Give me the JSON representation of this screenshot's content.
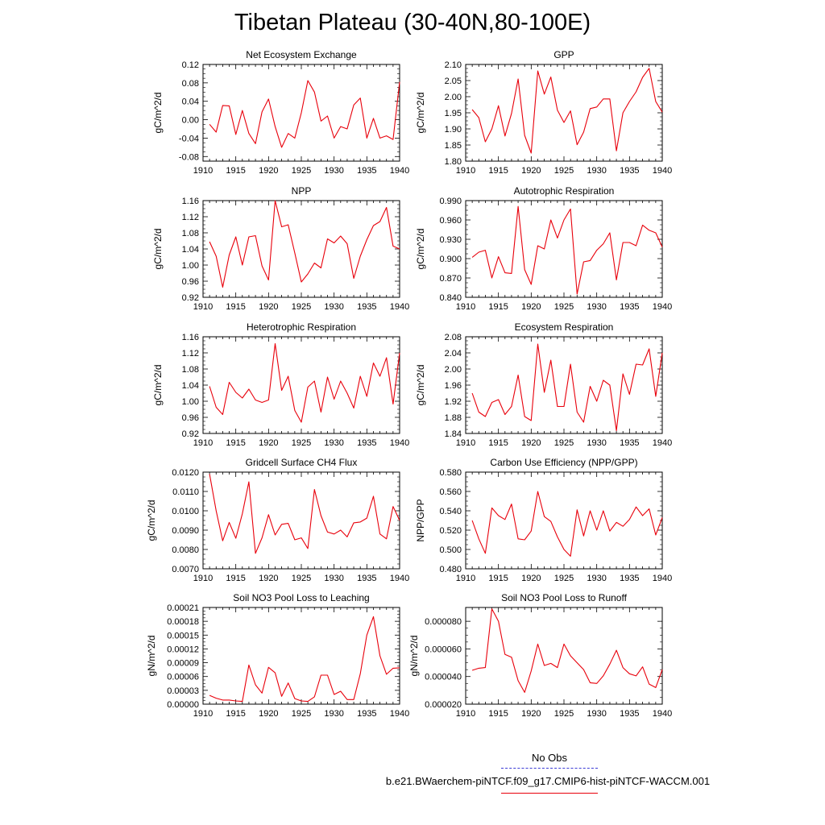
{
  "title": "Tibetan Plateau (30-40N,80-100E)",
  "legend": {
    "obs": {
      "label": "No Obs",
      "color": "#3b3bd6",
      "style": "dashed"
    },
    "model": {
      "label": "b.e21.BWaerchem-piNTCF.f09_g17.CMIP6-hist-piNTCF-WACCM.001",
      "color": "#e8000b",
      "style": "solid"
    }
  },
  "chart_data": [
    {
      "type": "line",
      "title": "Net Ecosystem Exchange",
      "ylabel": "gC/m^2/d",
      "xlabel": "",
      "xlim": [
        1910,
        1940
      ],
      "ylim": [
        -0.09,
        0.12
      ],
      "xticks": [
        "1910",
        "1915",
        "1920",
        "1925",
        "1930",
        "1935",
        "1940"
      ],
      "yticks": [
        "0.12",
        "0.08",
        "0.04",
        "0.00",
        "-0.04",
        "-0.08"
      ],
      "ytick_values": [
        0.12,
        0.08,
        0.04,
        0.0,
        -0.04,
        -0.08
      ],
      "x": [
        1911,
        1912,
        1913,
        1914,
        1915,
        1916,
        1917,
        1918,
        1919,
        1920,
        1921,
        1922,
        1923,
        1924,
        1925,
        1926,
        1927,
        1928,
        1929,
        1930,
        1931,
        1932,
        1933,
        1934,
        1935,
        1936,
        1937,
        1938,
        1939,
        1940
      ],
      "values": [
        -0.01,
        -0.027,
        0.031,
        0.03,
        -0.032,
        0.02,
        -0.03,
        -0.052,
        0.017,
        0.045,
        -0.015,
        -0.06,
        -0.03,
        -0.04,
        0.015,
        0.085,
        0.06,
        -0.003,
        0.008,
        -0.04,
        -0.015,
        -0.02,
        0.032,
        0.047,
        -0.04,
        0.003,
        -0.04,
        -0.035,
        -0.043,
        0.082
      ]
    },
    {
      "type": "line",
      "title": "GPP",
      "ylabel": "gC/m^2/d",
      "xlabel": "",
      "xlim": [
        1910,
        1940
      ],
      "ylim": [
        1.8,
        2.1
      ],
      "xticks": [
        "1910",
        "1915",
        "1920",
        "1925",
        "1930",
        "1935",
        "1940"
      ],
      "yticks": [
        "2.10",
        "2.05",
        "2.00",
        "1.95",
        "1.90",
        "1.85",
        "1.80"
      ],
      "ytick_values": [
        2.1,
        2.05,
        2.0,
        1.95,
        1.9,
        1.85,
        1.8
      ],
      "x": [
        1911,
        1912,
        1913,
        1914,
        1915,
        1916,
        1917,
        1918,
        1919,
        1920,
        1921,
        1922,
        1923,
        1924,
        1925,
        1926,
        1927,
        1928,
        1929,
        1930,
        1931,
        1932,
        1933,
        1934,
        1935,
        1936,
        1937,
        1938,
        1939,
        1940
      ],
      "values": [
        1.96,
        1.935,
        1.86,
        1.9,
        1.972,
        1.878,
        1.948,
        2.055,
        1.88,
        1.825,
        2.08,
        2.008,
        2.061,
        1.958,
        1.92,
        1.956,
        1.851,
        1.89,
        1.963,
        1.968,
        1.993,
        1.993,
        1.832,
        1.95,
        1.985,
        2.015,
        2.06,
        2.088,
        1.985,
        1.952
      ]
    },
    {
      "type": "line",
      "title": "NPP",
      "ylabel": "gC/m^2/d",
      "xlabel": "",
      "xlim": [
        1910,
        1940
      ],
      "ylim": [
        0.92,
        1.16
      ],
      "xticks": [
        "1910",
        "1915",
        "1920",
        "1925",
        "1930",
        "1935",
        "1940"
      ],
      "yticks": [
        "1.16",
        "1.12",
        "1.08",
        "1.04",
        "1.00",
        "0.96",
        "0.92"
      ],
      "ytick_values": [
        1.16,
        1.12,
        1.08,
        1.04,
        1.0,
        0.96,
        0.92
      ],
      "x": [
        1911,
        1912,
        1913,
        1914,
        1915,
        1916,
        1917,
        1918,
        1919,
        1920,
        1921,
        1922,
        1923,
        1924,
        1925,
        1926,
        1927,
        1928,
        1929,
        1930,
        1931,
        1932,
        1933,
        1934,
        1935,
        1936,
        1937,
        1938,
        1939,
        1940
      ],
      "values": [
        1.058,
        1.022,
        0.945,
        1.025,
        1.07,
        1.0,
        1.07,
        1.073,
        0.998,
        0.963,
        1.16,
        1.095,
        1.1,
        1.03,
        0.958,
        0.978,
        1.005,
        0.993,
        1.065,
        1.055,
        1.072,
        1.053,
        0.967,
        1.022,
        1.063,
        1.098,
        1.108,
        1.143,
        1.047,
        1.04
      ]
    },
    {
      "type": "line",
      "title": "Autotrophic Respiration",
      "ylabel": "gC/m^2/d",
      "xlabel": "",
      "xlim": [
        1910,
        1940
      ],
      "ylim": [
        0.84,
        0.99
      ],
      "xticks": [
        "1910",
        "1915",
        "1920",
        "1925",
        "1930",
        "1935",
        "1940"
      ],
      "yticks": [
        "0.990",
        "0.960",
        "0.930",
        "0.900",
        "0.870",
        "0.840"
      ],
      "ytick_values": [
        0.99,
        0.96,
        0.93,
        0.9,
        0.87,
        0.84
      ],
      "x": [
        1911,
        1912,
        1913,
        1914,
        1915,
        1916,
        1917,
        1918,
        1919,
        1920,
        1921,
        1922,
        1923,
        1924,
        1925,
        1926,
        1927,
        1928,
        1929,
        1930,
        1931,
        1932,
        1933,
        1934,
        1935,
        1936,
        1937,
        1938,
        1939,
        1940
      ],
      "values": [
        0.902,
        0.91,
        0.913,
        0.87,
        0.903,
        0.878,
        0.877,
        0.981,
        0.883,
        0.86,
        0.92,
        0.915,
        0.96,
        0.932,
        0.96,
        0.977,
        0.845,
        0.895,
        0.897,
        0.913,
        0.923,
        0.94,
        0.867,
        0.925,
        0.925,
        0.92,
        0.952,
        0.944,
        0.94,
        0.918
      ]
    },
    {
      "type": "line",
      "title": "Heterotrophic Respiration",
      "ylabel": "gC/m^2/d",
      "xlabel": "",
      "xlim": [
        1910,
        1940
      ],
      "ylim": [
        0.92,
        1.16
      ],
      "xticks": [
        "1910",
        "1915",
        "1920",
        "1925",
        "1930",
        "1935",
        "1940"
      ],
      "yticks": [
        "1.16",
        "1.12",
        "1.08",
        "1.04",
        "1.00",
        "0.96",
        "0.92"
      ],
      "ytick_values": [
        1.16,
        1.12,
        1.08,
        1.04,
        1.0,
        0.96,
        0.92
      ],
      "x": [
        1911,
        1912,
        1913,
        1914,
        1915,
        1916,
        1917,
        1918,
        1919,
        1920,
        1921,
        1922,
        1923,
        1924,
        1925,
        1926,
        1927,
        1928,
        1929,
        1930,
        1931,
        1932,
        1933,
        1934,
        1935,
        1936,
        1937,
        1938,
        1939,
        1940
      ],
      "values": [
        1.037,
        0.985,
        0.967,
        1.047,
        1.022,
        1.008,
        1.03,
        1.003,
        0.997,
        1.003,
        1.143,
        1.027,
        1.062,
        0.977,
        0.948,
        1.035,
        1.05,
        0.973,
        1.06,
        1.005,
        1.05,
        1.02,
        0.983,
        1.062,
        1.012,
        1.095,
        1.062,
        1.108,
        0.993,
        1.12
      ]
    },
    {
      "type": "line",
      "title": "Ecosystem Respiration",
      "ylabel": "gC/m^2/d",
      "xlabel": "",
      "xlim": [
        1910,
        1940
      ],
      "ylim": [
        1.84,
        2.08
      ],
      "xticks": [
        "1910",
        "1915",
        "1920",
        "1925",
        "1930",
        "1935",
        "1940"
      ],
      "yticks": [
        "2.08",
        "2.04",
        "2.00",
        "1.96",
        "1.92",
        "1.88",
        "1.84"
      ],
      "ytick_values": [
        2.08,
        2.04,
        2.0,
        1.96,
        1.92,
        1.88,
        1.84
      ],
      "x": [
        1911,
        1912,
        1913,
        1914,
        1915,
        1916,
        1917,
        1918,
        1919,
        1920,
        1921,
        1922,
        1923,
        1924,
        1925,
        1926,
        1927,
        1928,
        1929,
        1930,
        1931,
        1932,
        1933,
        1934,
        1935,
        1936,
        1937,
        1938,
        1939,
        1940
      ],
      "values": [
        1.94,
        1.893,
        1.882,
        1.917,
        1.924,
        1.887,
        1.907,
        1.985,
        1.882,
        1.872,
        2.062,
        1.942,
        2.022,
        1.907,
        1.907,
        2.012,
        1.893,
        1.868,
        1.957,
        1.92,
        1.972,
        1.96,
        1.847,
        1.988,
        1.937,
        2.012,
        2.01,
        2.05,
        1.932,
        2.04
      ]
    },
    {
      "type": "line",
      "title": "Gridcell Surface CH4 Flux",
      "ylabel": "gC/m^2/d",
      "xlabel": "",
      "xlim": [
        1910,
        1940
      ],
      "ylim": [
        0.007,
        0.012
      ],
      "xticks": [
        "1910",
        "1915",
        "1920",
        "1925",
        "1930",
        "1935",
        "1940"
      ],
      "yticks": [
        "0.0120",
        "0.0110",
        "0.0100",
        "0.0090",
        "0.0080",
        "0.0070"
      ],
      "ytick_values": [
        0.012,
        0.011,
        0.01,
        0.009,
        0.008,
        0.007
      ],
      "x": [
        1911,
        1912,
        1913,
        1914,
        1915,
        1916,
        1917,
        1918,
        1919,
        1920,
        1921,
        1922,
        1923,
        1924,
        1925,
        1926,
        1927,
        1928,
        1929,
        1930,
        1931,
        1932,
        1933,
        1934,
        1935,
        1936,
        1937,
        1938,
        1939,
        1940
      ],
      "values": [
        0.0119,
        0.01,
        0.00845,
        0.0094,
        0.00858,
        0.00985,
        0.0115,
        0.0078,
        0.0086,
        0.0098,
        0.00875,
        0.0093,
        0.00935,
        0.0085,
        0.0086,
        0.00805,
        0.0111,
        0.00975,
        0.0089,
        0.0088,
        0.009,
        0.00865,
        0.00938,
        0.00942,
        0.00962,
        0.01075,
        0.0088,
        0.00855,
        0.01022,
        0.0095
      ]
    },
    {
      "type": "line",
      "title": "Carbon Use Efficiency (NPP/GPP)",
      "ylabel": "NPP/GPP",
      "xlabel": "",
      "xlim": [
        1910,
        1940
      ],
      "ylim": [
        0.48,
        0.58
      ],
      "xticks": [
        "1910",
        "1915",
        "1920",
        "1925",
        "1930",
        "1935",
        "1940"
      ],
      "yticks": [
        "0.580",
        "0.560",
        "0.540",
        "0.520",
        "0.500",
        "0.480"
      ],
      "ytick_values": [
        0.58,
        0.56,
        0.54,
        0.52,
        0.5,
        0.48
      ],
      "x": [
        1911,
        1912,
        1913,
        1914,
        1915,
        1916,
        1917,
        1918,
        1919,
        1920,
        1921,
        1922,
        1923,
        1924,
        1925,
        1926,
        1927,
        1928,
        1929,
        1930,
        1931,
        1932,
        1933,
        1934,
        1935,
        1936,
        1937,
        1938,
        1939,
        1940
      ],
      "values": [
        0.53,
        0.511,
        0.496,
        0.543,
        0.535,
        0.531,
        0.547,
        0.511,
        0.51,
        0.519,
        0.56,
        0.534,
        0.529,
        0.513,
        0.5,
        0.493,
        0.541,
        0.514,
        0.54,
        0.52,
        0.54,
        0.519,
        0.528,
        0.524,
        0.531,
        0.544,
        0.535,
        0.542,
        0.515,
        0.533
      ]
    },
    {
      "type": "line",
      "title": "Soil NO3 Pool Loss to Leaching",
      "ylabel": "gN/m^2/d",
      "xlabel": "",
      "xlim": [
        1910,
        1940
      ],
      "ylim": [
        0.0,
        0.00021
      ],
      "xticks": [
        "1910",
        "1915",
        "1920",
        "1925",
        "1930",
        "1935",
        "1940"
      ],
      "yticks": [
        "0.00021",
        "0.00018",
        "0.00015",
        "0.00012",
        "0.00009",
        "0.00006",
        "0.00003",
        "0.00000"
      ],
      "ytick_values": [
        0.00021,
        0.00018,
        0.00015,
        0.00012,
        9e-05,
        6e-05,
        3e-05,
        0.0
      ],
      "x": [
        1911,
        1912,
        1913,
        1914,
        1915,
        1916,
        1917,
        1918,
        1919,
        1920,
        1921,
        1922,
        1923,
        1924,
        1925,
        1926,
        1927,
        1928,
        1929,
        1930,
        1931,
        1932,
        1933,
        1934,
        1935,
        1936,
        1937,
        1938,
        1939,
        1940
      ],
      "values": [
        1.9e-05,
        1.3e-05,
        9e-06,
        9e-06,
        7e-06,
        6e-06,
        8.5e-05,
        4.2e-05,
        2.4e-05,
        8e-05,
        6.8e-05,
        1.7e-05,
        4.6e-05,
        1.2e-05,
        7e-06,
        6e-06,
        1.6e-05,
        6.3e-05,
        6.3e-05,
        2.1e-05,
        2.8e-05,
        1e-05,
        1e-05,
        6.6e-05,
        0.00015,
        0.00019,
        0.000105,
        6.5e-05,
        7.8e-05,
        7.9e-05
      ]
    },
    {
      "type": "line",
      "title": "Soil NO3 Pool Loss to Runoff",
      "ylabel": "gN/m^2/d",
      "xlabel": "",
      "xlim": [
        1910,
        1940
      ],
      "ylim": [
        2e-05,
        9e-05
      ],
      "xticks": [
        "1910",
        "1915",
        "1920",
        "1925",
        "1930",
        "1935",
        "1940"
      ],
      "yticks": [
        "0.000080",
        "0.000060",
        "0.000040",
        "0.000020"
      ],
      "ytick_values": [
        8e-05,
        6e-05,
        4e-05,
        2e-05
      ],
      "x": [
        1911,
        1912,
        1913,
        1914,
        1915,
        1916,
        1917,
        1918,
        1919,
        1920,
        1921,
        1922,
        1923,
        1924,
        1925,
        1926,
        1927,
        1928,
        1929,
        1930,
        1931,
        1932,
        1933,
        1934,
        1935,
        1936,
        1937,
        1938,
        1939,
        1940
      ],
      "values": [
        4.45e-05,
        4.6e-05,
        4.65e-05,
        8.9e-05,
        8e-05,
        5.6e-05,
        5.4e-05,
        3.7e-05,
        2.85e-05,
        4.4e-05,
        6.35e-05,
        4.8e-05,
        4.95e-05,
        4.65e-05,
        6.35e-05,
        5.5e-05,
        5e-05,
        4.5e-05,
        3.55e-05,
        3.5e-05,
        4.05e-05,
        4.9e-05,
        5.9e-05,
        4.65e-05,
        4.2e-05,
        4.05e-05,
        4.7e-05,
        3.45e-05,
        3.2e-05,
        4.5e-05
      ]
    }
  ]
}
